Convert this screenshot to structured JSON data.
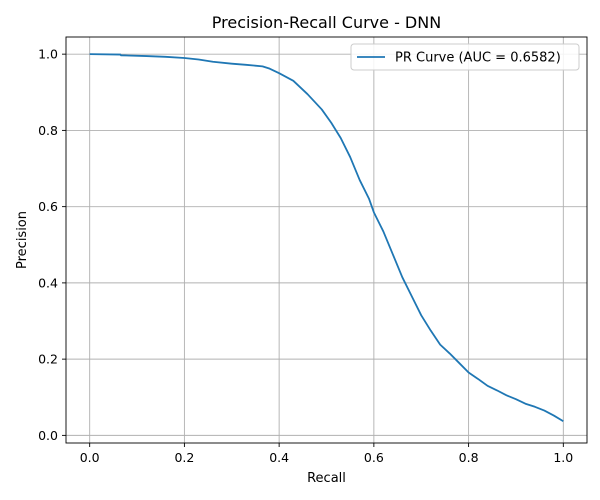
{
  "chart_data": {
    "type": "line",
    "title": "Precision-Recall Curve - DNN",
    "xlabel": "Recall",
    "ylabel": "Precision",
    "xlim": [
      -0.05,
      1.05
    ],
    "ylim": [
      -0.02,
      1.045
    ],
    "grid": true,
    "legend_position": "top-right",
    "x_ticks": [
      "0.0",
      "0.2",
      "0.4",
      "0.6",
      "0.8",
      "1.0"
    ],
    "y_ticks": [
      "0.0",
      "0.2",
      "0.4",
      "0.6",
      "0.8",
      "1.0"
    ],
    "series": [
      {
        "name": "PR Curve (AUC = 0.6582)",
        "color": "#1f77b4",
        "x": [
          0.0,
          0.065,
          0.066,
          0.12,
          0.16,
          0.2,
          0.23,
          0.26,
          0.3,
          0.33,
          0.365,
          0.38,
          0.4,
          0.43,
          0.46,
          0.49,
          0.51,
          0.53,
          0.55,
          0.57,
          0.59,
          0.6,
          0.62,
          0.64,
          0.66,
          0.68,
          0.7,
          0.72,
          0.74,
          0.76,
          0.78,
          0.8,
          0.82,
          0.84,
          0.86,
          0.88,
          0.9,
          0.92,
          0.94,
          0.96,
          0.98,
          1.0
        ],
        "y": [
          1.0,
          0.999,
          0.997,
          0.995,
          0.993,
          0.99,
          0.986,
          0.98,
          0.975,
          0.972,
          0.968,
          0.962,
          0.95,
          0.93,
          0.895,
          0.855,
          0.82,
          0.78,
          0.73,
          0.67,
          0.62,
          0.585,
          0.535,
          0.475,
          0.415,
          0.365,
          0.315,
          0.275,
          0.238,
          0.215,
          0.19,
          0.165,
          0.148,
          0.13,
          0.118,
          0.105,
          0.095,
          0.083,
          0.075,
          0.065,
          0.052,
          0.037
        ]
      }
    ]
  }
}
